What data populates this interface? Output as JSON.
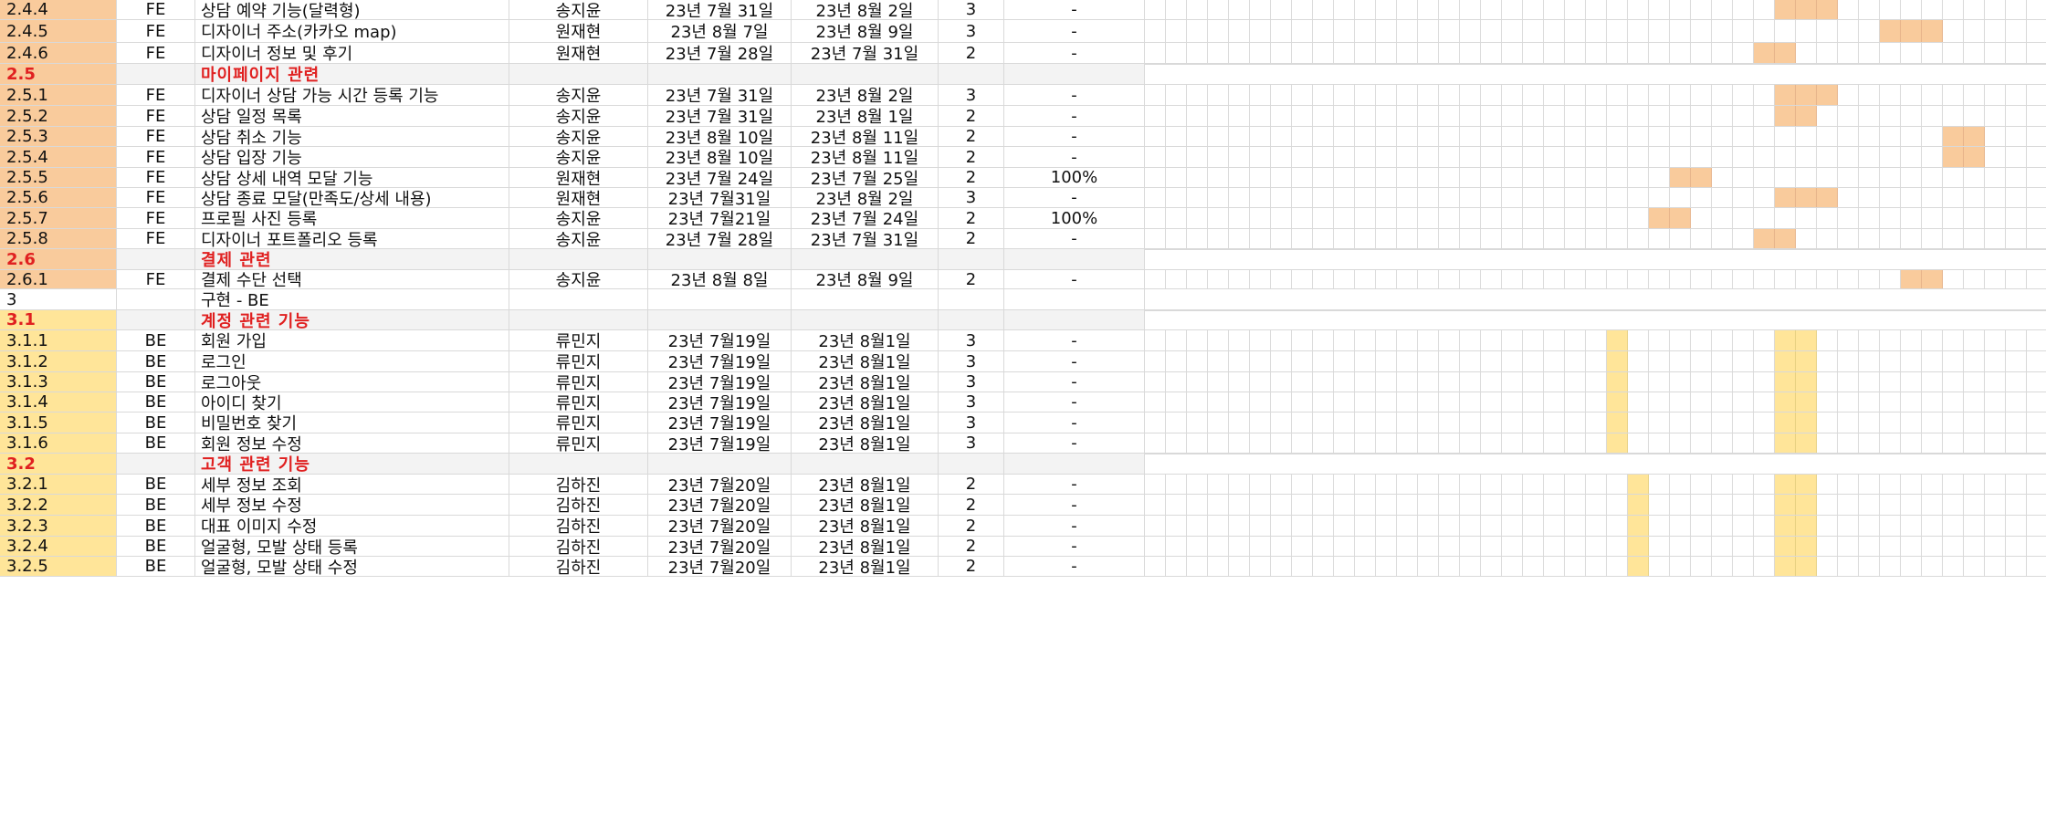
{
  "colors": {
    "fe_bar": "#f9cb9c",
    "be_bar": "#ffe599",
    "subheader_text": "#e02020",
    "section_bg": "#cccccc",
    "grid": "#d9d9d9"
  },
  "gantt": {
    "columns": 43
  },
  "rows": [
    {
      "kind": "task",
      "team": "fe",
      "id": "2.4.4",
      "type": "FE",
      "name": "상담 예약 기능(달력형)",
      "owner": "송지윤",
      "start": "23년 7월 31일",
      "end": "23년 8월 2일",
      "days": "3",
      "progress": "-",
      "bar": [
        30,
        3
      ]
    },
    {
      "kind": "task",
      "team": "fe",
      "id": "2.4.5",
      "type": "FE",
      "name": "디자이너 주소(카카오 map)",
      "owner": "원재현",
      "start": "23년 8월 7일",
      "end": "23년 8월 9일",
      "days": "3",
      "progress": "-",
      "bar": [
        35,
        3
      ]
    },
    {
      "kind": "task",
      "team": "fe",
      "id": "2.4.6",
      "type": "FE",
      "name": "디자이너 정보 및 후기",
      "owner": "원재현",
      "start": "23년 7월 28일",
      "end": "23년 7월 31일",
      "days": "2",
      "progress": "-",
      "bar": [
        29,
        2
      ]
    },
    {
      "kind": "sub",
      "team": "fe",
      "id": "2.5",
      "name": "마이페이지 관련"
    },
    {
      "kind": "task",
      "team": "fe",
      "id": "2.5.1",
      "type": "FE",
      "name": "디자이너 상담 가능 시간 등록 기능",
      "owner": "송지윤",
      "start": "23년 7월 31일",
      "end": "23년 8월 2일",
      "days": "3",
      "progress": "-",
      "bar": [
        30,
        3
      ]
    },
    {
      "kind": "task",
      "team": "fe",
      "id": "2.5.2",
      "type": "FE",
      "name": "상담 일정 목록",
      "owner": "송지윤",
      "start": "23년 7월 31일",
      "end": "23년 8월 1일",
      "days": "2",
      "progress": "-",
      "bar": [
        30,
        2
      ]
    },
    {
      "kind": "task",
      "team": "fe",
      "id": "2.5.3",
      "type": "FE",
      "name": "상담 취소 기능",
      "owner": "송지윤",
      "start": "23년 8월 10일",
      "end": "23년 8월 11일",
      "days": "2",
      "progress": "-",
      "bar": [
        38,
        2
      ]
    },
    {
      "kind": "task",
      "team": "fe",
      "id": "2.5.4",
      "type": "FE",
      "name": "상담 입장 기능",
      "owner": "송지윤",
      "start": "23년 8월 10일",
      "end": "23년 8월 11일",
      "days": "2",
      "progress": "-",
      "bar": [
        38,
        2
      ]
    },
    {
      "kind": "task",
      "team": "fe",
      "id": "2.5.5",
      "type": "FE",
      "name": "상담 상세 내역 모달 기능",
      "owner": "원재현",
      "start": "23년 7월 24일",
      "end": "23년 7월 25일",
      "days": "2",
      "progress": "100%",
      "bar": [
        25,
        2
      ]
    },
    {
      "kind": "task",
      "team": "fe",
      "id": "2.5.6",
      "type": "FE",
      "name": "상담 종료 모달(만족도/상세 내용)",
      "owner": "원재현",
      "start": "23년 7월31일",
      "end": "23년 8월 2일",
      "days": "3",
      "progress": "-",
      "bar": [
        30,
        3
      ]
    },
    {
      "kind": "task",
      "team": "fe",
      "id": "2.5.7",
      "type": "FE",
      "name": "프로필 사진 등록",
      "owner": "송지윤",
      "start": "23년 7월21일",
      "end": "23년 7월 24일",
      "days": "2",
      "progress": "100%",
      "bar": [
        24,
        2
      ]
    },
    {
      "kind": "task",
      "team": "fe",
      "id": "2.5.8",
      "type": "FE",
      "name": "디자이너 포트폴리오 등록",
      "owner": "송지윤",
      "start": "23년 7월 28일",
      "end": "23년 7월 31일",
      "days": "2",
      "progress": "-",
      "bar": [
        29,
        2
      ]
    },
    {
      "kind": "sub",
      "team": "fe",
      "id": "2.6",
      "name": "결제 관련"
    },
    {
      "kind": "task",
      "team": "fe",
      "id": "2.6.1",
      "type": "FE",
      "name": "결제 수단 선택",
      "owner": "송지윤",
      "start": "23년 8월 8일",
      "end": "23년 8월 9일",
      "days": "2",
      "progress": "-",
      "bar": [
        36,
        2
      ]
    },
    {
      "kind": "section",
      "id": "3",
      "name": "구현 - BE"
    },
    {
      "kind": "sub",
      "team": "be",
      "id": "3.1",
      "name": "계정 관련 기능"
    },
    {
      "kind": "task",
      "team": "be",
      "id": "3.1.1",
      "type": "BE",
      "name": "회원 가입",
      "owner": "류민지",
      "start": "23년 7월19일",
      "end": "23년 8월1일",
      "days": "3",
      "progress": "-",
      "bar": [
        22,
        1
      ],
      "bar2": [
        30,
        2
      ]
    },
    {
      "kind": "task",
      "team": "be",
      "id": "3.1.2",
      "type": "BE",
      "name": "로그인",
      "owner": "류민지",
      "start": "23년 7월19일",
      "end": "23년 8월1일",
      "days": "3",
      "progress": "-",
      "bar": [
        22,
        1
      ],
      "bar2": [
        30,
        2
      ]
    },
    {
      "kind": "task",
      "team": "be",
      "id": "3.1.3",
      "type": "BE",
      "name": "로그아웃",
      "owner": "류민지",
      "start": "23년 7월19일",
      "end": "23년 8월1일",
      "days": "3",
      "progress": "-",
      "bar": [
        22,
        1
      ],
      "bar2": [
        30,
        2
      ]
    },
    {
      "kind": "task",
      "team": "be",
      "id": "3.1.4",
      "type": "BE",
      "name": "아이디 찾기",
      "owner": "류민지",
      "start": "23년 7월19일",
      "end": "23년 8월1일",
      "days": "3",
      "progress": "-",
      "bar": [
        22,
        1
      ],
      "bar2": [
        30,
        2
      ]
    },
    {
      "kind": "task",
      "team": "be",
      "id": "3.1.5",
      "type": "BE",
      "name": "비밀번호 찾기",
      "owner": "류민지",
      "start": "23년 7월19일",
      "end": "23년 8월1일",
      "days": "3",
      "progress": "-",
      "bar": [
        22,
        1
      ],
      "bar2": [
        30,
        2
      ]
    },
    {
      "kind": "task",
      "team": "be",
      "id": "3.1.6",
      "type": "BE",
      "name": "회원 정보 수정",
      "owner": "류민지",
      "start": "23년 7월19일",
      "end": "23년 8월1일",
      "days": "3",
      "progress": "-",
      "bar": [
        22,
        1
      ],
      "bar2": [
        30,
        2
      ]
    },
    {
      "kind": "sub",
      "team": "be",
      "id": "3.2",
      "name": "고객 관련 기능"
    },
    {
      "kind": "task",
      "team": "be",
      "id": "3.2.1",
      "type": "BE",
      "name": "세부 정보 조회",
      "owner": "김하진",
      "start": "23년 7월20일",
      "end": "23년 8월1일",
      "days": "2",
      "progress": "-",
      "bar": [
        23,
        1
      ],
      "bar2": [
        30,
        2
      ]
    },
    {
      "kind": "task",
      "team": "be",
      "id": "3.2.2",
      "type": "BE",
      "name": "세부 정보 수정",
      "owner": "김하진",
      "start": "23년 7월20일",
      "end": "23년 8월1일",
      "days": "2",
      "progress": "-",
      "bar": [
        23,
        1
      ],
      "bar2": [
        30,
        2
      ]
    },
    {
      "kind": "task",
      "team": "be",
      "id": "3.2.3",
      "type": "BE",
      "name": "대표 이미지 수정",
      "owner": "김하진",
      "start": "23년 7월20일",
      "end": "23년 8월1일",
      "days": "2",
      "progress": "-",
      "bar": [
        23,
        1
      ],
      "bar2": [
        30,
        2
      ]
    },
    {
      "kind": "task",
      "team": "be",
      "id": "3.2.4",
      "type": "BE",
      "name": "얼굴형, 모발 상태 등록",
      "owner": "김하진",
      "start": "23년 7월20일",
      "end": "23년 8월1일",
      "days": "2",
      "progress": "-",
      "bar": [
        23,
        1
      ],
      "bar2": [
        30,
        2
      ]
    },
    {
      "kind": "task",
      "team": "be",
      "id": "3.2.5",
      "type": "BE",
      "name": "얼굴형, 모발 상태 수정",
      "owner": "김하진",
      "start": "23년 7월20일",
      "end": "23년 8월1일",
      "days": "2",
      "progress": "-",
      "bar": [
        23,
        1
      ],
      "bar2": [
        30,
        2
      ]
    }
  ]
}
